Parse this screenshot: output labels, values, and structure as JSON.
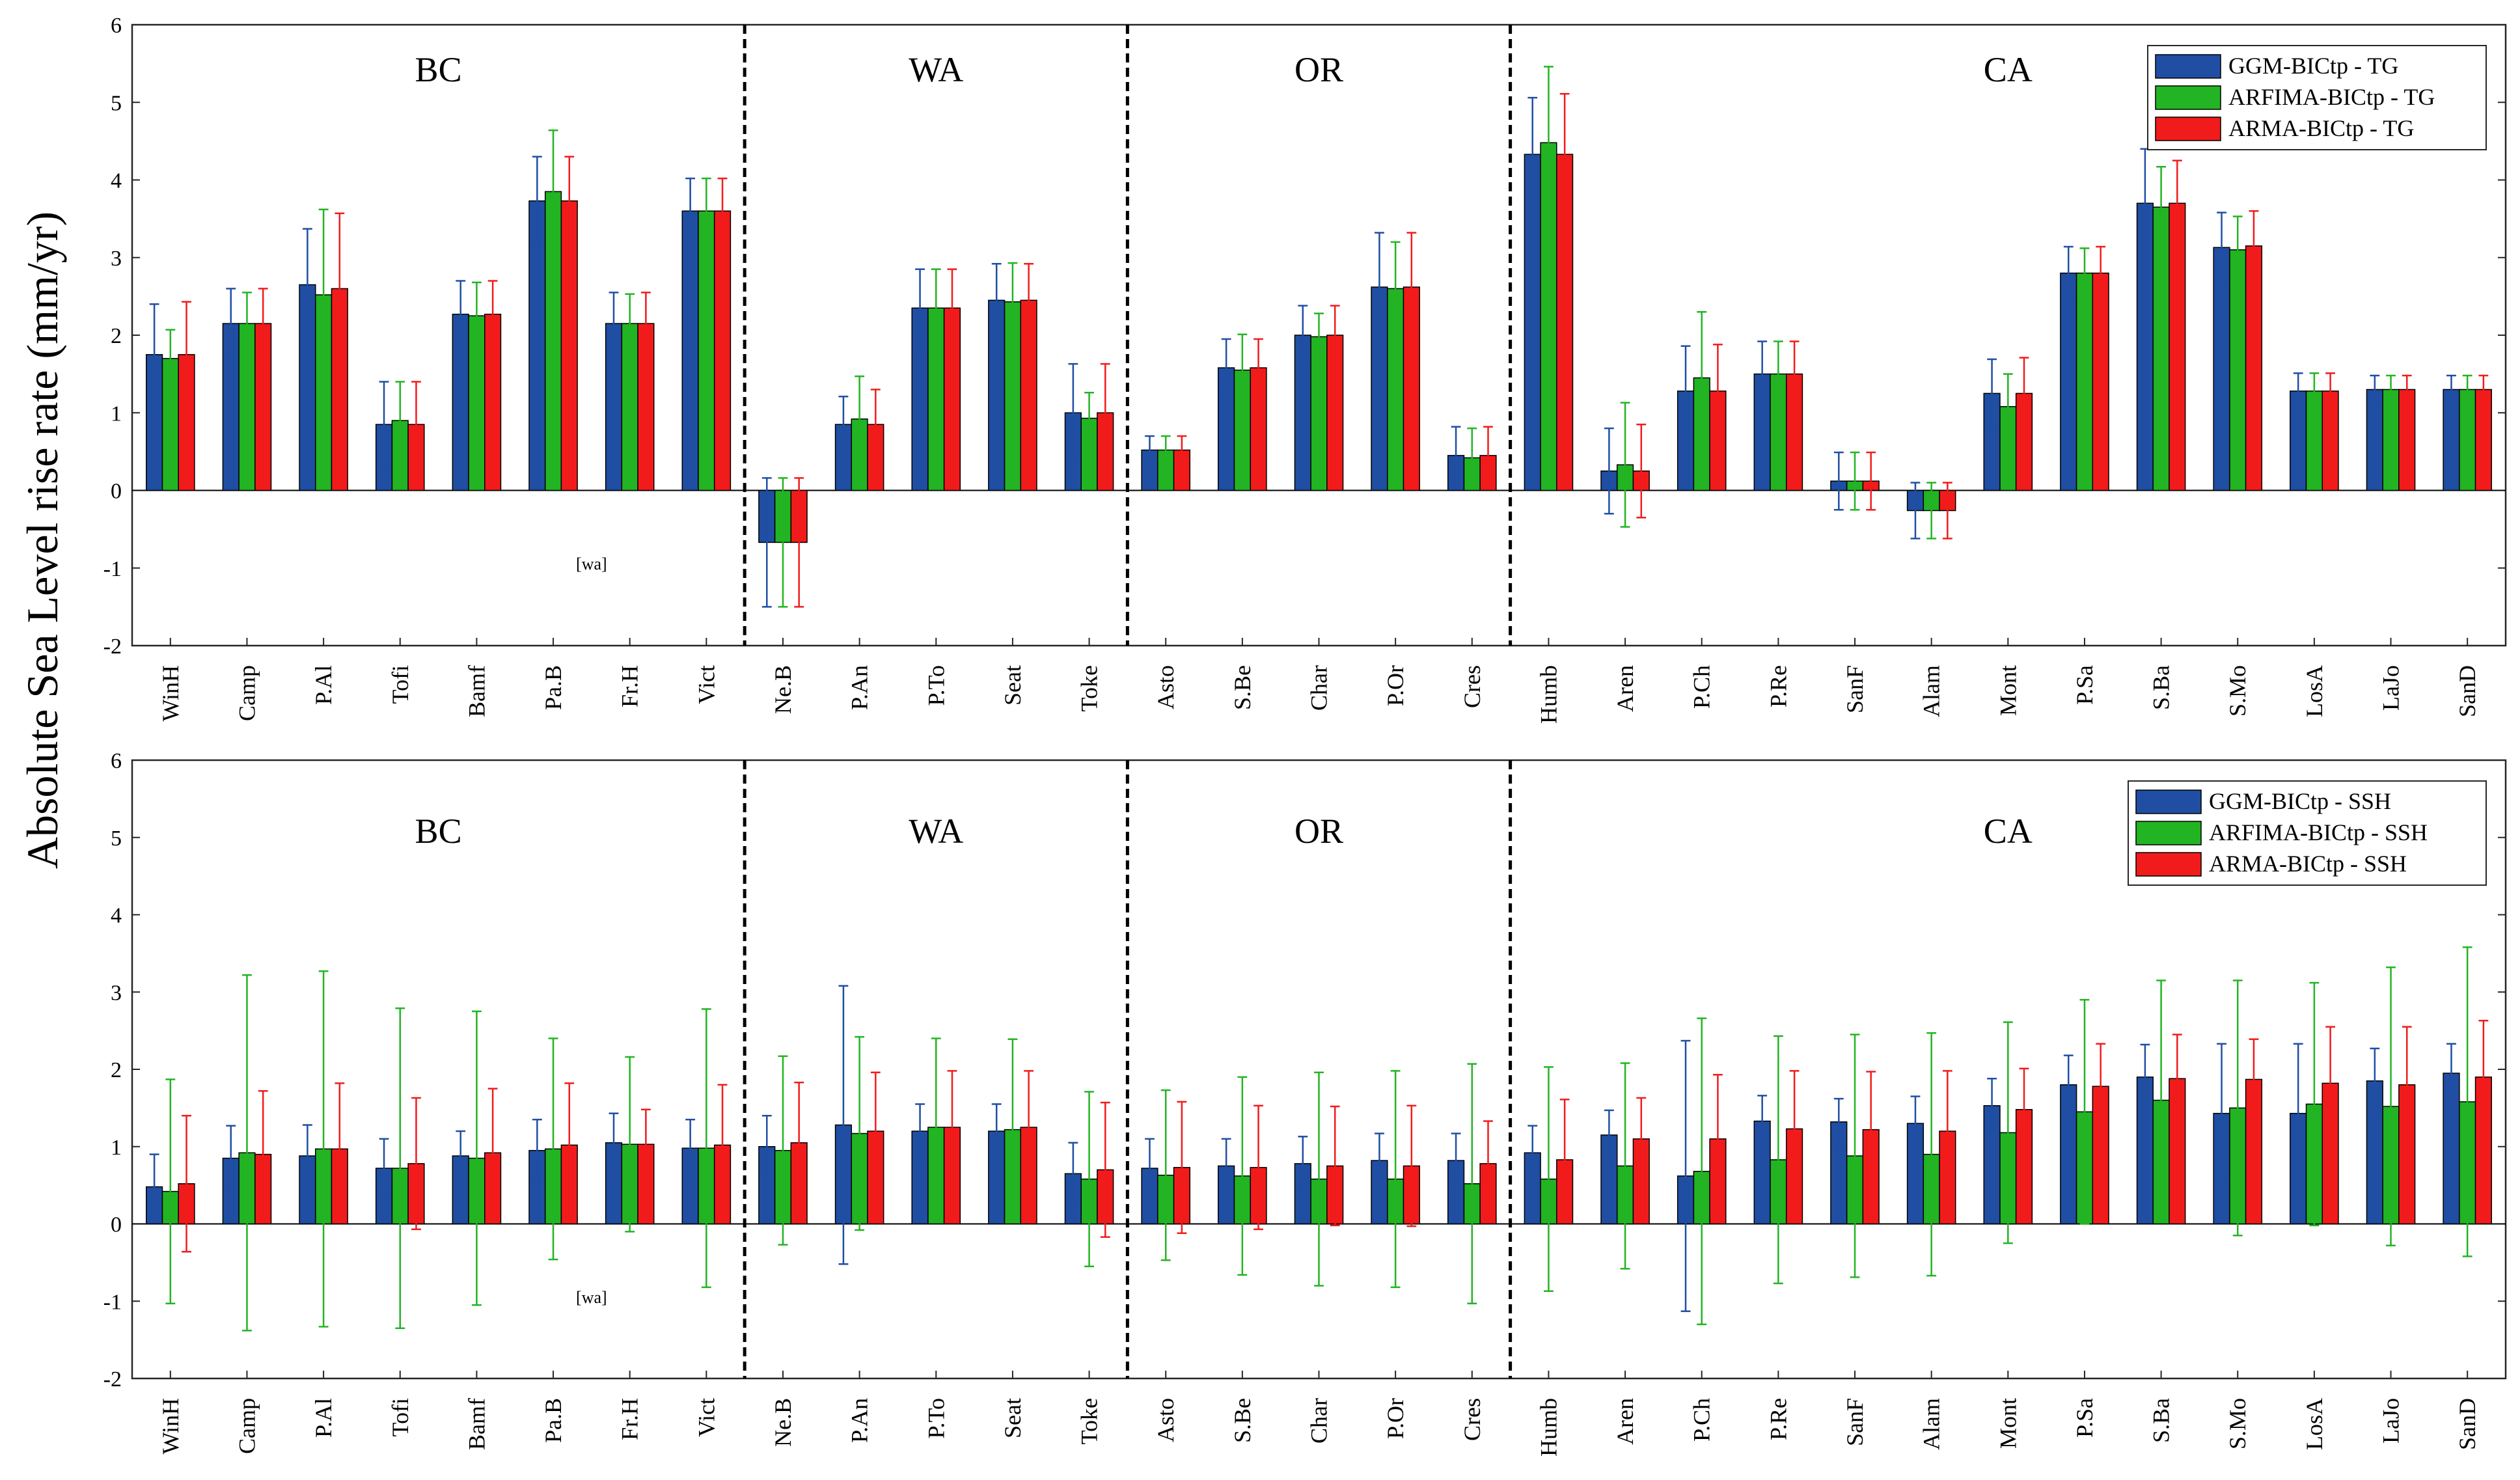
{
  "ylabel": "Absolute Sea Level rise rate  (mm/yr)",
  "colors": {
    "ggm": "#1f4ea3",
    "arfima": "#22b422",
    "arma": "#f21b1b"
  },
  "chart_data": [
    {
      "type": "bar",
      "panel": "top",
      "ylim": [
        -2,
        6
      ],
      "yticks": [
        "-2",
        "-1",
        "0",
        "1",
        "2",
        "3",
        "4",
        "5",
        "6"
      ],
      "categories": [
        "WinH",
        "Camp",
        "P.Al",
        "Tofi",
        "Bamf",
        "Pa.B",
        "Fr.H",
        "Vict",
        "Ne.B",
        "P.An",
        "P.To",
        "Seat",
        "Toke",
        "Asto",
        "S.Be",
        "Char",
        "P.Or",
        "Cres",
        "Humb",
        "Aren",
        "P.Ch",
        "P.Re",
        "SanF",
        "Alam",
        "Mont",
        "P.Sa",
        "S.Ba",
        "S.Mo",
        "LosA",
        "LaJo",
        "SanD"
      ],
      "regions": [
        {
          "label": "BC",
          "first": 0,
          "last": 7
        },
        {
          "label": "WA",
          "first": 8,
          "last": 12
        },
        {
          "label": "OR",
          "first": 13,
          "last": 17
        },
        {
          "label": "CA",
          "first": 18,
          "last": 30
        }
      ],
      "dividers_after": [
        7,
        12,
        17
      ],
      "annotation": "[wa]",
      "legend_position": "top-right",
      "series": [
        {
          "name": "GGM-BICtp - TG",
          "key": "ggm",
          "values": [
            1.75,
            2.15,
            2.65,
            0.85,
            2.27,
            3.73,
            2.15,
            3.6,
            -0.67,
            0.85,
            2.35,
            2.45,
            1.0,
            0.52,
            1.58,
            2.0,
            2.62,
            0.45,
            4.33,
            0.25,
            1.28,
            1.5,
            0.12,
            -0.26,
            1.25,
            2.8,
            3.7,
            3.13,
            1.28,
            1.3,
            1.3
          ],
          "errors": [
            0.65,
            0.45,
            0.72,
            0.55,
            0.43,
            0.57,
            0.4,
            0.42,
            0.83,
            0.36,
            0.5,
            0.47,
            0.63,
            0.18,
            0.37,
            0.38,
            0.7,
            0.37,
            0.73,
            0.55,
            0.58,
            0.42,
            0.37,
            0.36,
            0.44,
            0.34,
            0.7,
            0.45,
            0.23,
            0.18,
            0.18
          ]
        },
        {
          "name": "ARFIMA-BICtp - TG",
          "key": "arfima",
          "values": [
            1.7,
            2.15,
            2.52,
            0.9,
            2.25,
            3.85,
            2.15,
            3.6,
            -0.67,
            0.92,
            2.35,
            2.43,
            0.93,
            0.52,
            1.55,
            1.98,
            2.6,
            0.42,
            4.48,
            0.33,
            1.45,
            1.5,
            0.12,
            -0.26,
            1.08,
            2.8,
            3.65,
            3.1,
            1.28,
            1.3,
            1.3
          ],
          "errors": [
            0.37,
            0.4,
            1.1,
            0.5,
            0.43,
            0.79,
            0.38,
            0.42,
            0.83,
            0.55,
            0.5,
            0.5,
            0.33,
            0.18,
            0.46,
            0.3,
            0.6,
            0.38,
            0.98,
            0.8,
            0.85,
            0.42,
            0.37,
            0.36,
            0.42,
            0.32,
            0.52,
            0.43,
            0.23,
            0.18,
            0.18
          ]
        },
        {
          "name": "ARMA-BICtp - TG",
          "key": "arma",
          "values": [
            1.75,
            2.15,
            2.6,
            0.85,
            2.27,
            3.73,
            2.15,
            3.6,
            -0.67,
            0.85,
            2.35,
            2.45,
            1.0,
            0.52,
            1.58,
            2.0,
            2.62,
            0.45,
            4.33,
            0.25,
            1.28,
            1.5,
            0.12,
            -0.26,
            1.25,
            2.8,
            3.7,
            3.15,
            1.28,
            1.3,
            1.3
          ],
          "errors": [
            0.68,
            0.45,
            0.97,
            0.55,
            0.43,
            0.57,
            0.4,
            0.42,
            0.83,
            0.45,
            0.5,
            0.47,
            0.63,
            0.18,
            0.37,
            0.38,
            0.7,
            0.37,
            0.78,
            0.6,
            0.6,
            0.42,
            0.37,
            0.36,
            0.46,
            0.34,
            0.55,
            0.45,
            0.23,
            0.18,
            0.18
          ]
        }
      ]
    },
    {
      "type": "bar",
      "panel": "bottom",
      "ylim": [
        -2,
        6
      ],
      "yticks": [
        "-2",
        "-1",
        "0",
        "1",
        "2",
        "3",
        "4",
        "5",
        "6"
      ],
      "categories": [
        "WinH",
        "Camp",
        "P.Al",
        "Tofi",
        "Bamf",
        "Pa.B",
        "Fr.H",
        "Vict",
        "Ne.B",
        "P.An",
        "P.To",
        "Seat",
        "Toke",
        "Asto",
        "S.Be",
        "Char",
        "P.Or",
        "Cres",
        "Humb",
        "Aren",
        "P.Ch",
        "P.Re",
        "SanF",
        "Alam",
        "Mont",
        "P.Sa",
        "S.Ba",
        "S.Mo",
        "LosA",
        "LaJo",
        "SanD"
      ],
      "regions": [
        {
          "label": "BC",
          "first": 0,
          "last": 7
        },
        {
          "label": "WA",
          "first": 8,
          "last": 12
        },
        {
          "label": "OR",
          "first": 13,
          "last": 17
        },
        {
          "label": "CA",
          "first": 18,
          "last": 30
        }
      ],
      "dividers_after": [
        7,
        12,
        17
      ],
      "annotation": "[wa]",
      "legend_position": "top-right",
      "series": [
        {
          "name": "GGM-BICtp - SSH",
          "key": "ggm",
          "values": [
            0.48,
            0.85,
            0.88,
            0.72,
            0.88,
            0.95,
            1.05,
            0.98,
            1.0,
            1.28,
            1.2,
            1.2,
            0.65,
            0.72,
            0.75,
            0.78,
            0.82,
            0.82,
            0.92,
            1.15,
            0.62,
            1.33,
            1.32,
            1.3,
            1.53,
            1.8,
            1.9,
            1.43,
            1.43,
            1.85,
            1.95
          ],
          "errors": [
            0.42,
            0.42,
            0.4,
            0.38,
            0.32,
            0.4,
            0.38,
            0.37,
            0.4,
            1.8,
            0.35,
            0.35,
            0.4,
            0.38,
            0.35,
            0.35,
            0.35,
            0.35,
            0.35,
            0.32,
            1.75,
            0.33,
            0.3,
            0.35,
            0.35,
            0.38,
            0.42,
            0.9,
            0.9,
            0.42,
            0.38
          ]
        },
        {
          "name": "ARFIMA-BICtp - SSH",
          "key": "arfima",
          "values": [
            0.42,
            0.92,
            0.97,
            0.72,
            0.85,
            0.97,
            1.03,
            0.98,
            0.95,
            1.17,
            1.25,
            1.22,
            0.58,
            0.63,
            0.62,
            0.58,
            0.58,
            0.52,
            0.58,
            0.75,
            0.68,
            0.83,
            0.88,
            0.9,
            1.18,
            1.45,
            1.6,
            1.5,
            1.55,
            1.52,
            1.58
          ],
          "errors": [
            1.45,
            2.3,
            2.3,
            2.07,
            1.9,
            1.43,
            1.13,
            1.8,
            1.22,
            1.25,
            1.15,
            1.17,
            1.13,
            1.1,
            1.28,
            1.38,
            1.4,
            1.55,
            1.45,
            1.33,
            1.98,
            1.6,
            1.57,
            1.57,
            1.43,
            1.45,
            1.55,
            1.65,
            1.57,
            1.8,
            2.0
          ]
        },
        {
          "name": "ARMA-BICtp - SSH",
          "key": "arma",
          "values": [
            0.52,
            0.9,
            0.97,
            0.78,
            0.92,
            1.02,
            1.03,
            1.02,
            1.05,
            1.2,
            1.25,
            1.25,
            0.7,
            0.73,
            0.73,
            0.75,
            0.75,
            0.78,
            0.83,
            1.1,
            1.1,
            1.23,
            1.22,
            1.2,
            1.48,
            1.78,
            1.88,
            1.87,
            1.82,
            1.8,
            1.9
          ],
          "errors": [
            0.88,
            0.82,
            0.85,
            0.85,
            0.83,
            0.8,
            0.45,
            0.78,
            0.78,
            0.76,
            0.73,
            0.73,
            0.87,
            0.85,
            0.8,
            0.77,
            0.78,
            0.55,
            0.78,
            0.53,
            0.83,
            0.75,
            0.75,
            0.78,
            0.53,
            0.55,
            0.57,
            0.52,
            0.73,
            0.75,
            0.73
          ]
        }
      ]
    }
  ]
}
